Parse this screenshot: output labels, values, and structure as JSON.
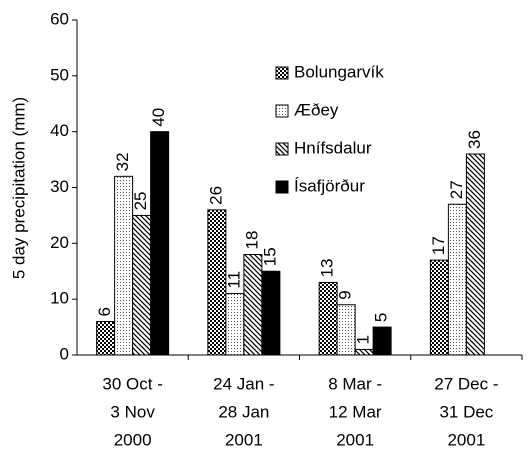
{
  "chart_data": {
    "type": "bar",
    "y_label": "5 day precipitation (mm)",
    "categories": [
      [
        "30 Oct -",
        "3 Nov",
        "2000"
      ],
      [
        "24 Jan -",
        "28 Jan",
        "2001"
      ],
      [
        "8 Mar -",
        "12 Mar",
        "2001"
      ],
      [
        "27 Dec -",
        "31 Dec",
        "2001"
      ]
    ],
    "series": [
      {
        "name": "Bolungarvík",
        "color": "#000000",
        "pattern": "checker",
        "values": [
          6,
          26,
          13,
          17
        ]
      },
      {
        "name": "Æðey",
        "color": "#ffffff",
        "pattern": "dots",
        "values": [
          32,
          11,
          9,
          27
        ]
      },
      {
        "name": "Hnífsdalur",
        "color": "#ffffff",
        "pattern": "hatch",
        "values": [
          25,
          18,
          1,
          36
        ]
      },
      {
        "name": "Ísafjörður",
        "color": "#000000",
        "pattern": "solid",
        "values": [
          40,
          15,
          5,
          null
        ]
      }
    ],
    "ylim": [
      0,
      60
    ],
    "yticks": [
      0,
      10,
      20,
      30,
      40,
      50,
      60
    ],
    "grid": false,
    "data_labels": true
  }
}
